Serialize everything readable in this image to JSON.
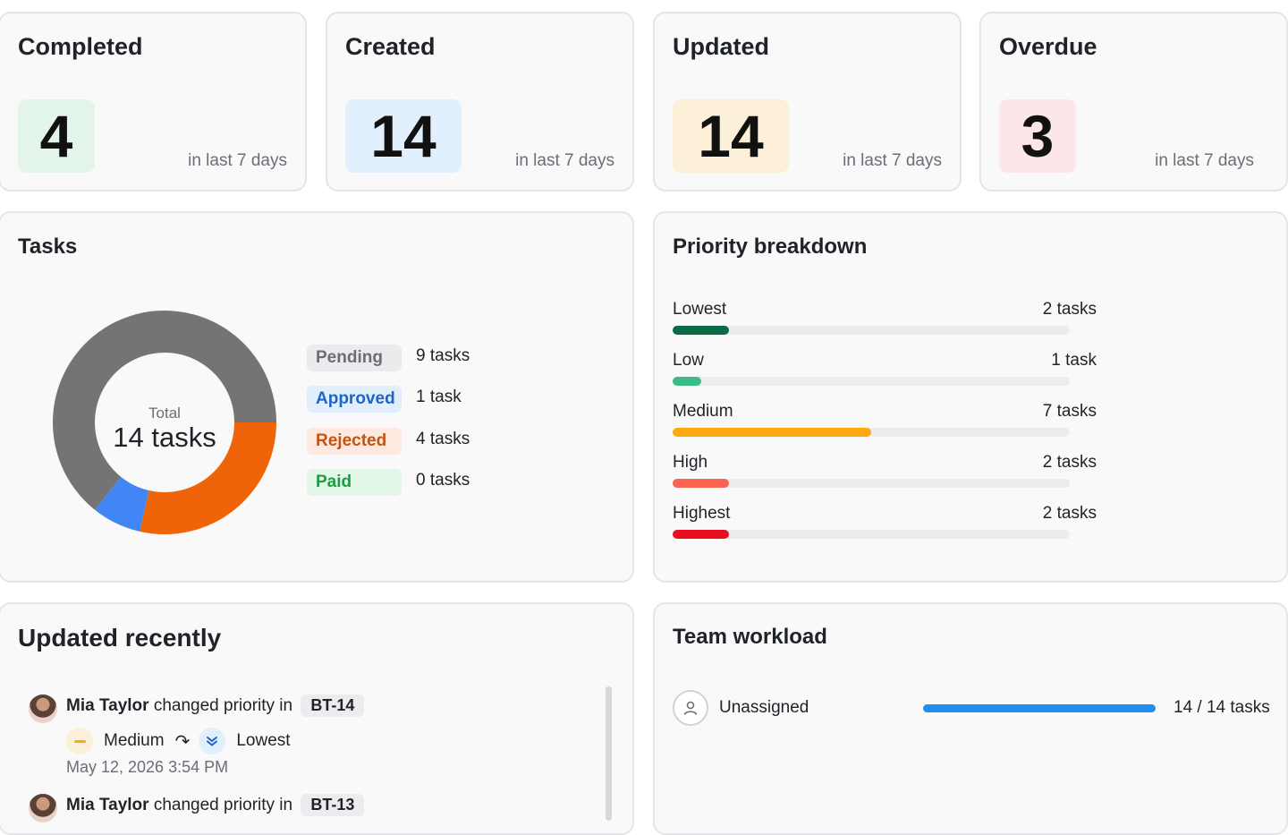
{
  "stats": [
    {
      "title": "Completed",
      "value": "4",
      "sub": "in last 7 days",
      "color": "#e3f5ea"
    },
    {
      "title": "Created",
      "value": "14",
      "sub": "in last 7 days",
      "color": "#e1f0fc"
    },
    {
      "title": "Updated",
      "value": "14",
      "sub": "in last 7 days",
      "color": "#fdf0d9"
    },
    {
      "title": "Overdue",
      "value": "3",
      "sub": "in last 7 days",
      "color": "#fce6e8"
    }
  ],
  "tasks": {
    "title": "Tasks",
    "total_label": "Total",
    "total_value": "14 tasks",
    "legend": [
      {
        "label": "Pending",
        "count": "9 tasks",
        "bg": "#ebebed",
        "fg": "#6b6e76"
      },
      {
        "label": "Approved",
        "count": "1 task",
        "bg": "#e1effd",
        "fg": "#1f64c8"
      },
      {
        "label": "Rejected",
        "count": "4 tasks",
        "bg": "#fde9df",
        "fg": "#c5520f"
      },
      {
        "label": "Paid",
        "count": "0 tasks",
        "bg": "#e3f7e8",
        "fg": "#1f9a45"
      }
    ]
  },
  "chart_data": {
    "type": "pie",
    "categories": [
      "Pending",
      "Approved",
      "Rejected",
      "Paid"
    ],
    "values": [
      9,
      1,
      4,
      0
    ],
    "colors": [
      "#747474",
      "#4285f4",
      "#ef6408",
      "#22c55e"
    ]
  },
  "priority": {
    "title": "Priority breakdown",
    "max": 14,
    "rows": [
      {
        "label": "Lowest",
        "count": "2 tasks",
        "value": 2,
        "color": "#0b6b45"
      },
      {
        "label": "Low",
        "count": "1 task",
        "value": 1,
        "color": "#3dbb86"
      },
      {
        "label": "Medium",
        "count": "7 tasks",
        "value": 7,
        "color": "#fda90f"
      },
      {
        "label": "High",
        "count": "2 tasks",
        "value": 2,
        "color": "#f86450"
      },
      {
        "label": "Highest",
        "count": "2 tasks",
        "value": 2,
        "color": "#e8101f"
      }
    ]
  },
  "recent": {
    "title": "Updated recently",
    "items": [
      {
        "user": "Mia Taylor",
        "action": "changed priority in",
        "key": "BT-14",
        "from": "Medium",
        "to": "Lowest",
        "time": "May 12, 2026 3:54 PM"
      },
      {
        "user": "Mia Taylor",
        "action": "changed priority in",
        "key": "BT-13"
      }
    ]
  },
  "workload": {
    "title": "Team workload",
    "rows": [
      {
        "name": "Unassigned",
        "count": "14 / 14 tasks",
        "fraction": 1.0,
        "color": "#1e8ff0"
      }
    ]
  }
}
